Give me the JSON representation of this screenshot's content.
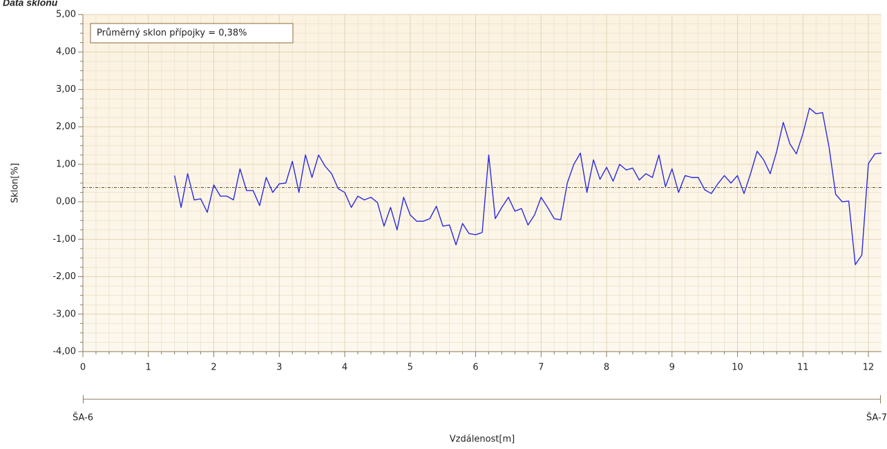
{
  "chart_data": {
    "type": "line",
    "title": "Data sklonu",
    "xlabel": "Vzdálenost[m]",
    "ylabel": "Sklon[%]",
    "annotation": "Průměrný sklon přípojky = 0,38%",
    "reference_line": 0.38,
    "secondary_axis": {
      "start_label": "ŠA-6",
      "end_label": "ŠA-7"
    },
    "color": "#2a2ae0",
    "grid": true,
    "xlim": [
      0,
      12.2
    ],
    "ylim": [
      -4,
      5
    ],
    "xticks": [
      0,
      1,
      2,
      3,
      4,
      5,
      6,
      7,
      8,
      9,
      10,
      11,
      12
    ],
    "yticks": [
      {
        "value": -4,
        "label": "-4,00"
      },
      {
        "value": -3,
        "label": "-3,00"
      },
      {
        "value": -2,
        "label": "-2,00"
      },
      {
        "value": -1,
        "label": "-1,00"
      },
      {
        "value": 0,
        "label": "0,00"
      },
      {
        "value": 1,
        "label": "1,00"
      },
      {
        "value": 2,
        "label": "2,00"
      },
      {
        "value": 3,
        "label": "3,00"
      },
      {
        "value": 4,
        "label": "4,00"
      },
      {
        "value": 5,
        "label": "5,00"
      }
    ],
    "x": [
      1.4,
      1.5,
      1.6,
      1.7,
      1.8,
      1.9,
      2.0,
      2.1,
      2.2,
      2.3,
      2.4,
      2.5,
      2.6,
      2.7,
      2.8,
      2.9,
      3.0,
      3.1,
      3.2,
      3.3,
      3.4,
      3.5,
      3.6,
      3.7,
      3.8,
      3.9,
      4.0,
      4.1,
      4.2,
      4.3,
      4.4,
      4.5,
      4.6,
      4.7,
      4.8,
      4.9,
      5.0,
      5.1,
      5.2,
      5.3,
      5.4,
      5.5,
      5.6,
      5.7,
      5.8,
      5.9,
      6.0,
      6.1,
      6.2,
      6.3,
      6.4,
      6.5,
      6.6,
      6.7,
      6.8,
      6.9,
      7.0,
      7.1,
      7.2,
      7.3,
      7.4,
      7.5,
      7.6,
      7.7,
      7.8,
      7.9,
      8.0,
      8.1,
      8.2,
      8.3,
      8.4,
      8.5,
      8.6,
      8.7,
      8.8,
      8.9,
      9.0,
      9.1,
      9.2,
      9.3,
      9.4,
      9.5,
      9.6,
      9.7,
      9.8,
      9.9,
      10.0,
      10.1,
      10.2,
      10.3,
      10.4,
      10.5,
      10.6,
      10.7,
      10.8,
      10.9,
      11.0,
      11.1,
      11.2,
      11.3,
      11.4,
      11.5,
      11.6,
      11.7,
      11.8,
      11.9,
      12.0,
      12.1,
      12.2
    ],
    "values": [
      0.7,
      -0.15,
      0.75,
      0.05,
      0.08,
      -0.28,
      0.45,
      0.15,
      0.15,
      0.05,
      0.88,
      0.3,
      0.3,
      -0.1,
      0.65,
      0.25,
      0.48,
      0.5,
      1.08,
      0.25,
      1.25,
      0.65,
      1.25,
      0.95,
      0.75,
      0.35,
      0.25,
      -0.15,
      0.15,
      0.05,
      0.12,
      -0.02,
      -0.65,
      -0.15,
      -0.75,
      0.12,
      -0.35,
      -0.52,
      -0.52,
      -0.45,
      -0.12,
      -0.65,
      -0.62,
      -1.15,
      -0.58,
      -0.85,
      -0.88,
      -0.82,
      1.25,
      -0.45,
      -0.15,
      0.12,
      -0.25,
      -0.18,
      -0.62,
      -0.35,
      0.12,
      -0.15,
      -0.45,
      -0.48,
      0.5,
      1.0,
      1.3,
      0.25,
      1.12,
      0.6,
      0.92,
      0.55,
      1.0,
      0.85,
      0.9,
      0.58,
      0.75,
      0.65,
      1.25,
      0.4,
      0.88,
      0.25,
      0.7,
      0.65,
      0.65,
      0.32,
      0.22,
      0.48,
      0.7,
      0.5,
      0.7,
      0.22,
      0.75,
      1.35,
      1.12,
      0.75,
      1.35,
      2.12,
      1.55,
      1.28,
      1.82,
      2.5,
      2.35,
      2.38,
      1.45,
      0.2,
      0.0,
      0.02,
      -1.68,
      -1.42,
      1.02,
      1.28,
      1.3
    ]
  }
}
